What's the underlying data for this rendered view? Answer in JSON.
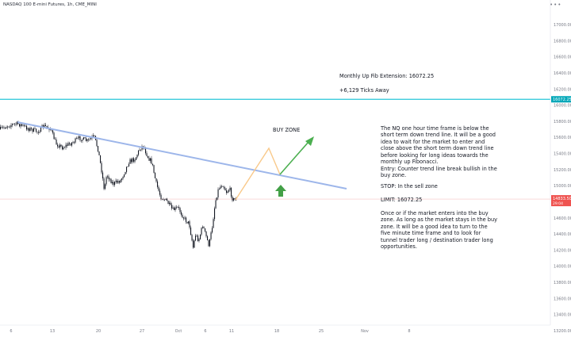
{
  "header": {
    "symbol": "NASDAQ 100 E-mini Futures, 1h, CME_MINI",
    "menu_dots": "•••"
  },
  "colors": {
    "trendline": "#9db6ea",
    "fib_line": "#26c6da",
    "stop_line": "#f7c2c2",
    "price_tag": "#ef5350",
    "fib_tag": "#00a7b8",
    "projection_orange": "#f9c98a",
    "projection_green": "#4caf50",
    "buy_arrow": "#43a047",
    "candles": "#131722"
  },
  "chart_data": {
    "type": "line",
    "x": [
      "6",
      "13",
      "20",
      "27",
      "Oct",
      "6",
      "11",
      "18",
      "25",
      "Nov",
      "8"
    ],
    "series": [],
    "ylim": [
      13100,
      17300
    ],
    "y_ticks": [
      "17000.00",
      "16800.00",
      "16600.00",
      "16400.00",
      "16200.00",
      "16000.00",
      "15800.00",
      "15600.00",
      "15400.00",
      "15200.00",
      "15000.00",
      "14800.00",
      "14600.00",
      "14400.00",
      "14200.00",
      "14000.00",
      "13800.00",
      "13600.00",
      "13400.00",
      "13200.00"
    ],
    "fib_level": 16072.25,
    "current_price": "14833.50",
    "current_price_sub": "29:04",
    "fib_price_label": "16072.25",
    "grid": false
  },
  "annotations": {
    "fib_title": "Monthly Up Fib Extension: 16072.25",
    "ticks_away": "+6,129 Ticks Away",
    "buy_zone": "BUY ZONE",
    "analysis": "The NQ one hour time frame is below the short term down trend line. It will be a good idea to wait for the market to enter and close above the short term down trend line before looking for long ideas towards the monthly up Fibonacci.",
    "entry": "Entry: Counter trend line break bullish in the buy zone.",
    "stop": "STOP: In the sell zone",
    "limit": "LIMIT: 16072.25",
    "plan": "Once or if the market enters into the buy zone. As long as the market stays in the buy zone. It will be a good idea to turn to the five minute time frame and to look for tunnel trader long / destination trader long opportunities."
  }
}
